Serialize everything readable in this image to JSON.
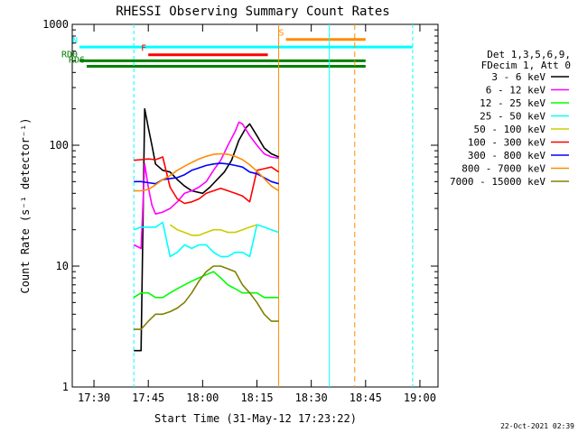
{
  "chart_data": {
    "type": "line",
    "title": "RHESSI Observing Summary Count Rates",
    "xlabel": "Start Time (31-May-12 17:23:22)",
    "ylabel": "Count Rate (s⁻¹ detector⁻¹)",
    "x_ticks": [
      "17:30",
      "17:45",
      "18:00",
      "18:15",
      "18:30",
      "18:45",
      "19:00"
    ],
    "x_tick_minutes": [
      1050,
      1065,
      1080,
      1095,
      1110,
      1125,
      1140
    ],
    "xlim_minutes": [
      1044,
      1145
    ],
    "y_ticks": [
      "1",
      "10",
      "100",
      "1000"
    ],
    "y_tick_values": [
      1,
      10,
      100,
      1000
    ],
    "ylim": [
      1,
      1000
    ],
    "yscale": "log",
    "timestamp": "22-Oct-2021 02:39",
    "legend": {
      "header_lines": [
        "Det 1,3,5,6,9,",
        "FDecim 1, Att 0"
      ],
      "placement": "right"
    },
    "series": [
      {
        "name": "3 - 6 keV",
        "color": "#000000",
        "points": [
          [
            1061,
            2
          ],
          [
            1063,
            2
          ],
          [
            1064,
            200
          ],
          [
            1065,
            140
          ],
          [
            1066,
            100
          ],
          [
            1067,
            70
          ],
          [
            1069,
            62
          ],
          [
            1071,
            60
          ],
          [
            1073,
            52
          ],
          [
            1075,
            46
          ],
          [
            1077,
            42
          ],
          [
            1080,
            40
          ],
          [
            1082,
            45
          ],
          [
            1084,
            52
          ],
          [
            1086,
            60
          ],
          [
            1088,
            75
          ],
          [
            1090,
            110
          ],
          [
            1092,
            140
          ],
          [
            1093,
            150
          ],
          [
            1095,
            120
          ],
          [
            1097,
            95
          ],
          [
            1099,
            85
          ],
          [
            1101,
            80
          ]
        ]
      },
      {
        "name": "6 - 12 keV",
        "color": "#ff00ff",
        "points": [
          [
            1061,
            15
          ],
          [
            1063,
            14
          ],
          [
            1064,
            70
          ],
          [
            1065,
            45
          ],
          [
            1066,
            32
          ],
          [
            1067,
            27
          ],
          [
            1069,
            28
          ],
          [
            1071,
            30
          ],
          [
            1073,
            34
          ],
          [
            1075,
            40
          ],
          [
            1077,
            42
          ],
          [
            1079,
            45
          ],
          [
            1081,
            50
          ],
          [
            1083,
            62
          ],
          [
            1085,
            75
          ],
          [
            1087,
            100
          ],
          [
            1089,
            130
          ],
          [
            1090,
            155
          ],
          [
            1091,
            150
          ],
          [
            1093,
            120
          ],
          [
            1095,
            100
          ],
          [
            1097,
            85
          ],
          [
            1099,
            80
          ],
          [
            1101,
            78
          ]
        ]
      },
      {
        "name": "12 - 25 keV",
        "color": "#00ff00",
        "points": [
          [
            1061,
            5.5
          ],
          [
            1063,
            6
          ],
          [
            1065,
            6
          ],
          [
            1067,
            5.5
          ],
          [
            1069,
            5.5
          ],
          [
            1071,
            6
          ],
          [
            1073,
            6.5
          ],
          [
            1075,
            7
          ],
          [
            1077,
            7.5
          ],
          [
            1079,
            8
          ],
          [
            1081,
            8.5
          ],
          [
            1083,
            9
          ],
          [
            1085,
            8
          ],
          [
            1087,
            7
          ],
          [
            1089,
            6.5
          ],
          [
            1091,
            6
          ],
          [
            1093,
            6
          ],
          [
            1095,
            6
          ],
          [
            1097,
            5.5
          ],
          [
            1099,
            5.5
          ],
          [
            1101,
            5.5
          ]
        ]
      },
      {
        "name": "25 - 50 keV",
        "color": "#00ffff",
        "points": [
          [
            1061,
            20
          ],
          [
            1063,
            21
          ],
          [
            1065,
            21
          ],
          [
            1067,
            21
          ],
          [
            1069,
            23
          ],
          [
            1071,
            12
          ],
          [
            1073,
            13
          ],
          [
            1075,
            15
          ],
          [
            1077,
            14
          ],
          [
            1079,
            15
          ],
          [
            1081,
            15
          ],
          [
            1083,
            13
          ],
          [
            1085,
            12
          ],
          [
            1087,
            12
          ],
          [
            1089,
            13
          ],
          [
            1091,
            13
          ],
          [
            1093,
            12
          ],
          [
            1095,
            22
          ],
          [
            1097,
            21
          ],
          [
            1099,
            20
          ],
          [
            1101,
            19
          ]
        ]
      },
      {
        "name": "50 - 100 keV",
        "color": "#cccc00",
        "points": [
          [
            1071,
            22
          ],
          [
            1073,
            20
          ],
          [
            1075,
            19
          ],
          [
            1077,
            18
          ],
          [
            1079,
            18
          ],
          [
            1081,
            19
          ],
          [
            1083,
            20
          ],
          [
            1085,
            20
          ],
          [
            1087,
            19
          ],
          [
            1089,
            19
          ],
          [
            1091,
            20
          ],
          [
            1093,
            21
          ],
          [
            1095,
            22
          ]
        ]
      },
      {
        "name": "100 - 300 keV",
        "color": "#ff0000",
        "points": [
          [
            1061,
            75
          ],
          [
            1063,
            76
          ],
          [
            1065,
            77
          ],
          [
            1067,
            76
          ],
          [
            1069,
            80
          ],
          [
            1071,
            45
          ],
          [
            1073,
            36
          ],
          [
            1075,
            33
          ],
          [
            1077,
            34
          ],
          [
            1079,
            36
          ],
          [
            1081,
            40
          ],
          [
            1083,
            42
          ],
          [
            1085,
            44
          ],
          [
            1087,
            42
          ],
          [
            1089,
            40
          ],
          [
            1091,
            38
          ],
          [
            1093,
            34
          ],
          [
            1095,
            62
          ],
          [
            1097,
            64
          ],
          [
            1099,
            66
          ],
          [
            1101,
            60
          ]
        ]
      },
      {
        "name": "300 - 800 keV",
        "color": "#0000ff",
        "points": [
          [
            1061,
            50
          ],
          [
            1063,
            50
          ],
          [
            1065,
            49
          ],
          [
            1067,
            48
          ],
          [
            1069,
            52
          ],
          [
            1071,
            53
          ],
          [
            1073,
            54
          ],
          [
            1075,
            57
          ],
          [
            1077,
            62
          ],
          [
            1079,
            65
          ],
          [
            1081,
            68
          ],
          [
            1083,
            70
          ],
          [
            1085,
            71
          ],
          [
            1087,
            70
          ],
          [
            1089,
            68
          ],
          [
            1091,
            66
          ],
          [
            1093,
            60
          ],
          [
            1095,
            58
          ],
          [
            1097,
            54
          ],
          [
            1099,
            50
          ],
          [
            1101,
            48
          ]
        ]
      },
      {
        "name": "800 - 7000 keV",
        "color": "#ff8c00",
        "points": [
          [
            1061,
            42
          ],
          [
            1063,
            42
          ],
          [
            1065,
            43
          ],
          [
            1067,
            47
          ],
          [
            1069,
            52
          ],
          [
            1071,
            56
          ],
          [
            1073,
            62
          ],
          [
            1075,
            67
          ],
          [
            1077,
            72
          ],
          [
            1079,
            77
          ],
          [
            1081,
            81
          ],
          [
            1083,
            84
          ],
          [
            1085,
            85
          ],
          [
            1087,
            84
          ],
          [
            1089,
            81
          ],
          [
            1091,
            76
          ],
          [
            1093,
            69
          ],
          [
            1095,
            61
          ],
          [
            1097,
            53
          ],
          [
            1099,
            46
          ],
          [
            1101,
            42
          ]
        ]
      },
      {
        "name": "7000 - 15000 keV",
        "color": "#808000",
        "points": [
          [
            1061,
            3
          ],
          [
            1063,
            3
          ],
          [
            1065,
            3.5
          ],
          [
            1067,
            4
          ],
          [
            1069,
            4
          ],
          [
            1071,
            4.2
          ],
          [
            1073,
            4.5
          ],
          [
            1075,
            5
          ],
          [
            1077,
            6
          ],
          [
            1079,
            7.5
          ],
          [
            1081,
            9
          ],
          [
            1083,
            10
          ],
          [
            1085,
            10
          ],
          [
            1087,
            9.5
          ],
          [
            1089,
            9
          ],
          [
            1091,
            7
          ],
          [
            1093,
            6
          ],
          [
            1095,
            5
          ],
          [
            1097,
            4
          ],
          [
            1099,
            3.5
          ],
          [
            1101,
            3.5
          ]
        ]
      }
    ],
    "annotations": [
      {
        "label": "RD0",
        "color": "#008000",
        "level": 500,
        "start": 1046,
        "end": 1125
      },
      {
        "label": "RD6",
        "color": "#008000",
        "level": 450,
        "start": 1048,
        "end": 1125
      },
      {
        "label": "N",
        "color": "#00ffff",
        "level": 650,
        "start": 1046,
        "end": 1138
      },
      {
        "label": "F",
        "color": "#ff0000",
        "level": 560,
        "start": 1065,
        "end": 1098
      },
      {
        "label": "S",
        "color": "#ff8c00",
        "level": 750,
        "start": 1103,
        "end": 1125
      }
    ]
  }
}
